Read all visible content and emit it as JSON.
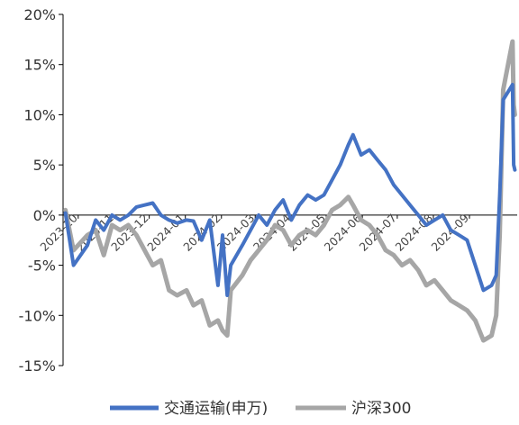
{
  "chart_data": {
    "type": "line",
    "title": "",
    "xlabel": "",
    "ylabel": "",
    "y_unit": "%",
    "ylim": [
      -15,
      20
    ],
    "y_ticks": [
      {
        "value": 20,
        "label": "20%"
      },
      {
        "value": 15,
        "label": "15%"
      },
      {
        "value": 10,
        "label": "10%"
      },
      {
        "value": 5,
        "label": "5%"
      },
      {
        "value": 0,
        "label": "0%"
      },
      {
        "value": -5,
        "label": "-5%"
      },
      {
        "value": -10,
        "label": "-10%"
      },
      {
        "value": -15,
        "label": "-15%"
      }
    ],
    "x_ticks": [
      "2023-10",
      "2023-11",
      "2023-12",
      "2024-01",
      "2024-02",
      "2024-03",
      "2024-04",
      "2024-05",
      "2024-06",
      "2024-07",
      "2024-08",
      "2024-09"
    ],
    "x_tick_dates": [
      "2023-10-01",
      "2023-11-01",
      "2023-12-01",
      "2024-01-01",
      "2024-02-01",
      "2024-03-01",
      "2024-04-01",
      "2024-05-01",
      "2024-06-01",
      "2024-07-01",
      "2024-08-01",
      "2024-09-01"
    ],
    "legend_position": "bottom",
    "grid": false,
    "series": [
      {
        "name": "交通运输(申万)",
        "color": "#4472C4",
        "points": [
          [
            "2023-09-20",
            0.2
          ],
          [
            "2023-09-27",
            -5.0
          ],
          [
            "2023-10-09",
            -3.0
          ],
          [
            "2023-10-16",
            -0.5
          ],
          [
            "2023-10-23",
            -1.5
          ],
          [
            "2023-10-30",
            0.0
          ],
          [
            "2023-11-06",
            -0.5
          ],
          [
            "2023-11-13",
            0.0
          ],
          [
            "2023-11-20",
            0.8
          ],
          [
            "2023-11-27",
            1.0
          ],
          [
            "2023-12-04",
            1.2
          ],
          [
            "2023-12-11",
            0.0
          ],
          [
            "2023-12-18",
            -0.5
          ],
          [
            "2023-12-25",
            -0.8
          ],
          [
            "2024-01-02",
            -0.5
          ],
          [
            "2024-01-08",
            -0.6
          ],
          [
            "2024-01-15",
            -2.5
          ],
          [
            "2024-01-22",
            -0.5
          ],
          [
            "2024-01-29",
            -7.0
          ],
          [
            "2024-02-02",
            -2.0
          ],
          [
            "2024-02-06",
            -8.0
          ],
          [
            "2024-02-09",
            -5.0
          ],
          [
            "2024-02-19",
            -3.0
          ],
          [
            "2024-02-26",
            -1.5
          ],
          [
            "2024-03-04",
            0.0
          ],
          [
            "2024-03-11",
            -1.0
          ],
          [
            "2024-03-18",
            0.5
          ],
          [
            "2024-03-25",
            1.5
          ],
          [
            "2024-04-01",
            -0.5
          ],
          [
            "2024-04-08",
            1.0
          ],
          [
            "2024-04-15",
            2.0
          ],
          [
            "2024-04-22",
            1.5
          ],
          [
            "2024-04-29",
            2.0
          ],
          [
            "2024-05-06",
            3.5
          ],
          [
            "2024-05-13",
            5.0
          ],
          [
            "2024-05-20",
            7.0
          ],
          [
            "2024-05-24",
            8.0
          ],
          [
            "2024-05-31",
            6.0
          ],
          [
            "2024-06-07",
            6.5
          ],
          [
            "2024-06-14",
            5.5
          ],
          [
            "2024-06-21",
            4.5
          ],
          [
            "2024-06-28",
            3.0
          ],
          [
            "2024-07-05",
            2.0
          ],
          [
            "2024-07-12",
            1.0
          ],
          [
            "2024-07-19",
            0.0
          ],
          [
            "2024-07-26",
            -1.0
          ],
          [
            "2024-08-02",
            -0.5
          ],
          [
            "2024-08-09",
            0.0
          ],
          [
            "2024-08-16",
            -1.5
          ],
          [
            "2024-08-23",
            -2.0
          ],
          [
            "2024-08-30",
            -2.5
          ],
          [
            "2024-09-06",
            -5.0
          ],
          [
            "2024-09-13",
            -7.5
          ],
          [
            "2024-09-20",
            -7.0
          ],
          [
            "2024-09-24",
            -6.0
          ],
          [
            "2024-09-27",
            2.0
          ],
          [
            "2024-09-30",
            11.5
          ],
          [
            "2024-10-08",
            13.0
          ],
          [
            "2024-10-09",
            5.0
          ],
          [
            "2024-10-10",
            4.5
          ]
        ]
      },
      {
        "name": "沪深300",
        "color": "#A6A6A6",
        "points": [
          [
            "2023-09-20",
            0.5
          ],
          [
            "2023-09-27",
            -3.5
          ],
          [
            "2023-10-09",
            -2.0
          ],
          [
            "2023-10-16",
            -1.5
          ],
          [
            "2023-10-23",
            -4.0
          ],
          [
            "2023-10-30",
            -1.0
          ],
          [
            "2023-11-06",
            -1.5
          ],
          [
            "2023-11-13",
            -1.0
          ],
          [
            "2023-11-20",
            -2.0
          ],
          [
            "2023-11-27",
            -3.5
          ],
          [
            "2023-12-04",
            -5.0
          ],
          [
            "2023-12-11",
            -4.5
          ],
          [
            "2023-12-18",
            -7.5
          ],
          [
            "2023-12-25",
            -8.0
          ],
          [
            "2024-01-02",
            -7.5
          ],
          [
            "2024-01-08",
            -9.0
          ],
          [
            "2024-01-15",
            -8.5
          ],
          [
            "2024-01-22",
            -11.0
          ],
          [
            "2024-01-29",
            -10.5
          ],
          [
            "2024-02-02",
            -11.5
          ],
          [
            "2024-02-06",
            -12.0
          ],
          [
            "2024-02-09",
            -7.5
          ],
          [
            "2024-02-19",
            -6.0
          ],
          [
            "2024-02-26",
            -4.5
          ],
          [
            "2024-03-04",
            -3.5
          ],
          [
            "2024-03-11",
            -2.5
          ],
          [
            "2024-03-18",
            -1.0
          ],
          [
            "2024-03-25",
            -1.5
          ],
          [
            "2024-04-01",
            -3.0
          ],
          [
            "2024-04-08",
            -2.0
          ],
          [
            "2024-04-15",
            -1.5
          ],
          [
            "2024-04-22",
            -2.0
          ],
          [
            "2024-04-29",
            -1.0
          ],
          [
            "2024-05-06",
            0.5
          ],
          [
            "2024-05-13",
            1.0
          ],
          [
            "2024-05-20",
            1.8
          ],
          [
            "2024-05-24",
            1.0
          ],
          [
            "2024-05-31",
            -0.5
          ],
          [
            "2024-06-07",
            -1.0
          ],
          [
            "2024-06-14",
            -2.0
          ],
          [
            "2024-06-21",
            -3.5
          ],
          [
            "2024-06-28",
            -4.0
          ],
          [
            "2024-07-05",
            -5.0
          ],
          [
            "2024-07-12",
            -4.5
          ],
          [
            "2024-07-19",
            -5.5
          ],
          [
            "2024-07-26",
            -7.0
          ],
          [
            "2024-08-02",
            -6.5
          ],
          [
            "2024-08-09",
            -7.5
          ],
          [
            "2024-08-16",
            -8.5
          ],
          [
            "2024-08-23",
            -9.0
          ],
          [
            "2024-08-30",
            -9.5
          ],
          [
            "2024-09-06",
            -10.5
          ],
          [
            "2024-09-13",
            -12.5
          ],
          [
            "2024-09-20",
            -12.0
          ],
          [
            "2024-09-24",
            -10.0
          ],
          [
            "2024-09-27",
            -2.0
          ],
          [
            "2024-09-30",
            12.5
          ],
          [
            "2024-10-08",
            17.3
          ],
          [
            "2024-10-09",
            11.0
          ],
          [
            "2024-10-10",
            10.0
          ]
        ]
      }
    ]
  }
}
